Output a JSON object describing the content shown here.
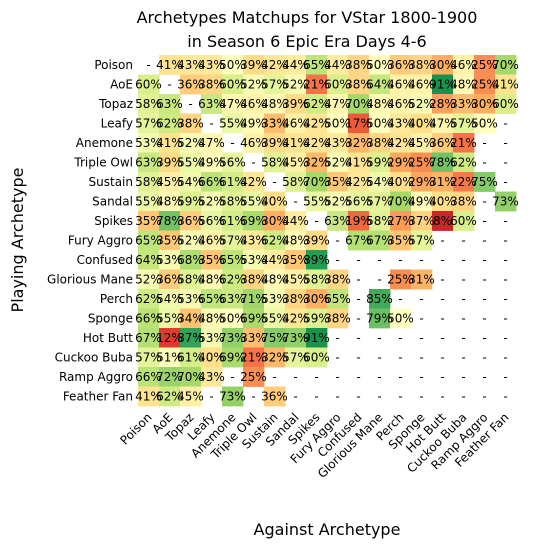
{
  "chart_data": {
    "type": "heatmap",
    "title": "Archetypes Matchups for VStar 1800-1900\nin Season 6 Epic Era Days 4-6",
    "xlabel": "Against Archetype",
    "ylabel": "Playing Archetype",
    "rows": [
      "Poison",
      "AoE",
      "Topaz",
      "Leafy",
      "Anemone",
      "Triple Owl",
      "Sustain",
      "Sandal",
      "Spikes",
      "Fury Aggro",
      "Confused",
      "Glorious Mane",
      "Perch",
      "Sponge",
      "Hot Butt",
      "Cuckoo Buba",
      "Ramp Aggro",
      "Feather Fan"
    ],
    "cols": [
      "Poison",
      "AoE",
      "Topaz",
      "Leafy",
      "Anemone",
      "Triple Owl",
      "Sustain",
      "Sandal",
      "Spikes",
      "Fury Aggro",
      "Confused",
      "Glorious Mane",
      "Perch",
      "Sponge",
      "Hot Butt",
      "Cuckoo Buba",
      "Ramp Aggro",
      "Feather Fan"
    ],
    "values": [
      [
        null,
        41,
        43,
        43,
        50,
        39,
        42,
        44,
        65,
        44,
        38,
        50,
        36,
        38,
        30,
        46,
        25,
        70
      ],
      [
        60,
        null,
        36,
        38,
        60,
        52,
        57,
        52,
        21,
        60,
        38,
        64,
        46,
        46,
        91,
        48,
        25,
        41
      ],
      [
        58,
        63,
        null,
        63,
        47,
        46,
        48,
        39,
        62,
        47,
        70,
        48,
        46,
        52,
        28,
        33,
        30,
        60
      ],
      [
        57,
        62,
        38,
        null,
        55,
        49,
        33,
        46,
        42,
        50,
        17,
        50,
        43,
        40,
        47,
        57,
        50,
        null
      ],
      [
        53,
        41,
        52,
        47,
        null,
        46,
        39,
        41,
        42,
        43,
        32,
        38,
        42,
        45,
        36,
        21,
        null,
        null
      ],
      [
        63,
        39,
        55,
        49,
        56,
        null,
        58,
        45,
        32,
        52,
        41,
        59,
        29,
        25,
        78,
        62,
        null,
        null
      ],
      [
        58,
        45,
        54,
        66,
        61,
        42,
        null,
        58,
        70,
        35,
        42,
        54,
        40,
        29,
        31,
        22,
        75,
        null
      ],
      [
        55,
        48,
        59,
        52,
        58,
        55,
        40,
        null,
        55,
        52,
        56,
        57,
        70,
        49,
        40,
        38,
        null,
        73
      ],
      [
        35,
        78,
        36,
        56,
        61,
        69,
        30,
        44,
        null,
        63,
        19,
        58,
        27,
        37,
        8,
        60,
        null,
        null
      ],
      [
        65,
        35,
        52,
        46,
        57,
        43,
        62,
        48,
        39,
        null,
        67,
        67,
        35,
        57,
        null,
        null,
        null,
        null
      ],
      [
        64,
        53,
        68,
        35,
        65,
        53,
        44,
        35,
        89,
        null,
        null,
        null,
        null,
        null,
        null,
        null,
        null,
        null
      ],
      [
        52,
        36,
        58,
        48,
        62,
        38,
        48,
        45,
        58,
        38,
        null,
        null,
        25,
        31,
        null,
        null,
        null,
        null
      ],
      [
        62,
        54,
        53,
        65,
        63,
        71,
        53,
        38,
        30,
        65,
        null,
        85,
        null,
        null,
        null,
        null,
        null,
        null
      ],
      [
        66,
        55,
        34,
        48,
        50,
        69,
        55,
        42,
        59,
        38,
        null,
        79,
        50,
        null,
        null,
        null,
        null,
        null
      ],
      [
        67,
        12,
        87,
        53,
        73,
        33,
        75,
        73,
        91,
        null,
        null,
        null,
        null,
        null,
        null,
        null,
        null,
        null
      ],
      [
        57,
        51,
        61,
        40,
        69,
        21,
        32,
        57,
        60,
        null,
        null,
        null,
        null,
        null,
        null,
        null,
        null,
        null
      ],
      [
        66,
        72,
        70,
        43,
        null,
        25,
        null,
        null,
        null,
        null,
        null,
        null,
        null,
        null,
        null,
        null,
        null,
        null
      ],
      [
        41,
        62,
        45,
        null,
        73,
        null,
        36,
        null,
        null,
        null,
        null,
        null,
        null,
        null,
        null,
        null,
        null,
        null
      ]
    ],
    "missing_label": "-",
    "value_suffix": "%",
    "colormap": "RdYlGn",
    "vmin": 0,
    "vmax": 100
  }
}
